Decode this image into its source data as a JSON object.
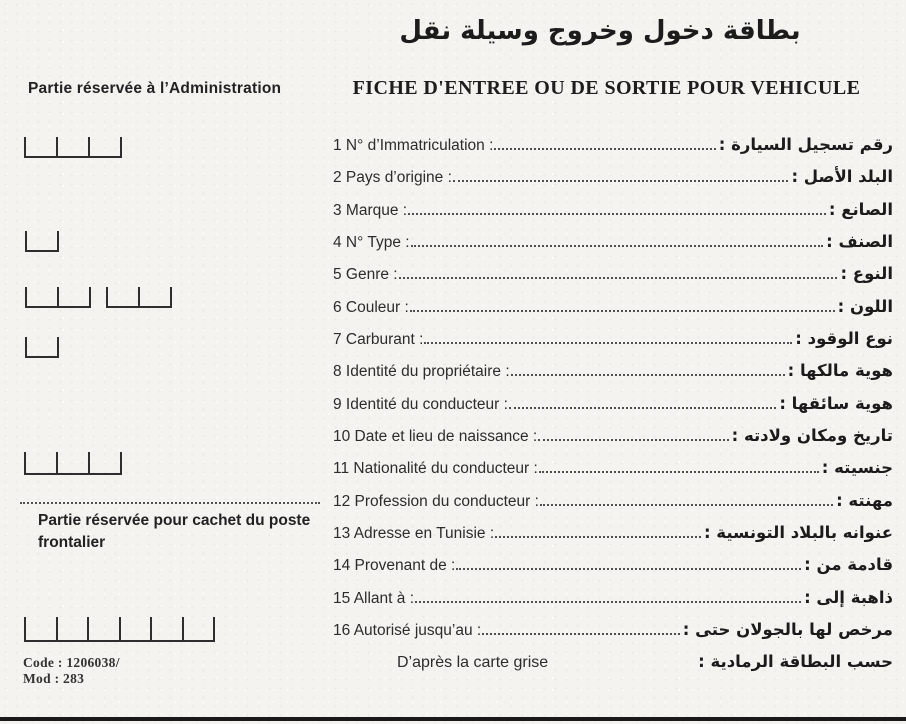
{
  "colors": {
    "paper": "#f4f3ef",
    "ink": "#232323",
    "line": "#2e2e2e"
  },
  "header": {
    "title_ar": "بطاقة دخول وخروج وسيلة نقل",
    "admin_label": "Partie réservée à l’Administration",
    "main_title": "FICHE D'ENTREE OU DE SORTIE POUR VEHICULE"
  },
  "fields": [
    {
      "num": "1",
      "label_fr": "N° d’Immatriculation :",
      "label_ar": "رقم تسجيل السيارة :"
    },
    {
      "num": "2",
      "label_fr": "Pays d’origine :",
      "label_ar": "البلد الأصل :"
    },
    {
      "num": "3",
      "label_fr": "Marque :",
      "label_ar": "الصانع :"
    },
    {
      "num": "4",
      "label_fr": "N° Type :",
      "label_ar": "الصنف :"
    },
    {
      "num": "5",
      "label_fr": "Genre :",
      "label_ar": "النوع :"
    },
    {
      "num": "6",
      "label_fr": "Couleur :",
      "label_ar": "اللون :"
    },
    {
      "num": "7",
      "label_fr": "Carburant :",
      "label_ar": "نوع الوقود :"
    },
    {
      "num": "8",
      "label_fr": "Identité du propriétaire :",
      "label_ar": "هوية مالكها :"
    },
    {
      "num": "9",
      "label_fr": "Identité du conducteur :",
      "label_ar": "هوية سائقها :"
    },
    {
      "num": "10",
      "label_fr": "Date et lieu de naissance :",
      "label_ar": "تاريخ ومكان ولادته :"
    },
    {
      "num": "11",
      "label_fr": "Nationalité du conducteur :",
      "label_ar": "جنسيته :"
    },
    {
      "num": "12",
      "label_fr": "Profession du conducteur :",
      "label_ar": "مهنته :"
    },
    {
      "num": "13",
      "label_fr": "Adresse en Tunisie :",
      "label_ar": "عنوانه بالبلاد التونسية :"
    },
    {
      "num": "14",
      "label_fr": "Provenant de :",
      "label_ar": "قادمة من :"
    },
    {
      "num": "15",
      "label_fr": "Allant à :",
      "label_ar": "ذاهبة إلى :"
    },
    {
      "num": "16",
      "label_fr": "Autorisé jusqu’au :",
      "label_ar": "مرخص لها بالجولان حتى :"
    }
  ],
  "footer_row": {
    "fr": "D’après la carte grise",
    "ar": "حسب البطاقة الرمادية :"
  },
  "stamp_section": {
    "label": "Partie réservée pour cachet du poste frontalier"
  },
  "codes": {
    "line1": "Code : 1206038/",
    "line2": "Mod : 283"
  },
  "entry_boxes": {
    "groups": [
      {
        "id": "a",
        "cells": 3
      },
      {
        "id": "b",
        "cells": 1
      },
      {
        "id": "c",
        "cells": 2
      },
      {
        "id": "d",
        "cells": 2
      },
      {
        "id": "e",
        "cells": 1
      },
      {
        "id": "f",
        "cells": 3
      },
      {
        "id": "g",
        "cells": 6
      }
    ]
  }
}
